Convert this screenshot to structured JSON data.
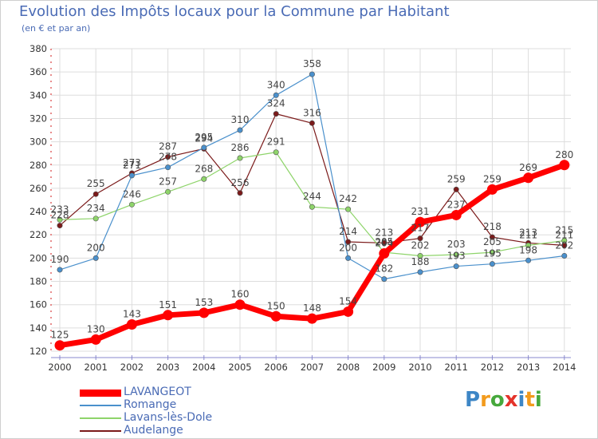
{
  "title": "Evolution des Impôts locaux pour la Commune par Habitant",
  "subtitle": "(en € et par an)",
  "logo": {
    "text": "Proxiti"
  },
  "chart_data": {
    "type": "line",
    "title": "Evolution des Impôts locaux pour la Commune par Habitant",
    "subtitle": "(en € et par an)",
    "xlabel": "",
    "ylabel": "",
    "x": [
      2000,
      2001,
      2002,
      2003,
      2004,
      2005,
      2006,
      2007,
      2008,
      2009,
      2010,
      2011,
      2012,
      2013,
      2014
    ],
    "ylim": [
      120,
      380
    ],
    "yticks": [
      120,
      140,
      160,
      180,
      200,
      220,
      240,
      260,
      280,
      300,
      320,
      340,
      360,
      380
    ],
    "grid": true,
    "legend_position": "bottom-left",
    "series": [
      {
        "name": "LAVANGEOT",
        "color": "#ff0000",
        "values": [
          125,
          130,
          143,
          151,
          153,
          160,
          150,
          148,
          154,
          204,
          231,
          237,
          259,
          269,
          280
        ],
        "labels": [
          "125",
          "130",
          "143",
          "151",
          "153",
          "160",
          "150",
          "148",
          "154",
          "204",
          "231",
          "237",
          "259",
          "269",
          "280"
        ]
      },
      {
        "name": "Romange",
        "color": "#4a90cc",
        "values": [
          190,
          200,
          271,
          278,
          295,
          310,
          340,
          358,
          200,
          182,
          188,
          193,
          195,
          198,
          202
        ],
        "labels": [
          "190",
          "200",
          "271",
          "278",
          "295",
          "310",
          "340",
          "358",
          "200",
          "182",
          "188",
          "193",
          "195",
          "198",
          "202"
        ]
      },
      {
        "name": "Lavans-lès-Dole",
        "color": "#8ed46a",
        "values": [
          233,
          234,
          246,
          257,
          268,
          286,
          291,
          244,
          242,
          205,
          202,
          203,
          205,
          211,
          215
        ],
        "labels": [
          "233",
          "234",
          "246",
          "257",
          "268",
          "286",
          "291",
          "244",
          "242",
          "205",
          "202",
          "203",
          "205",
          "211",
          "215"
        ]
      },
      {
        "name": "Audelange",
        "color": "#7b1a1a",
        "values": [
          228,
          255,
          273,
          287,
          294,
          256,
          324,
          316,
          214,
          213,
          217,
          259,
          218,
          213,
          211
        ],
        "labels": [
          "228",
          "255",
          "273",
          "287",
          "294",
          "256",
          "324",
          "316",
          "214",
          "213",
          "217",
          "259",
          "218",
          "213",
          "211"
        ]
      }
    ]
  }
}
